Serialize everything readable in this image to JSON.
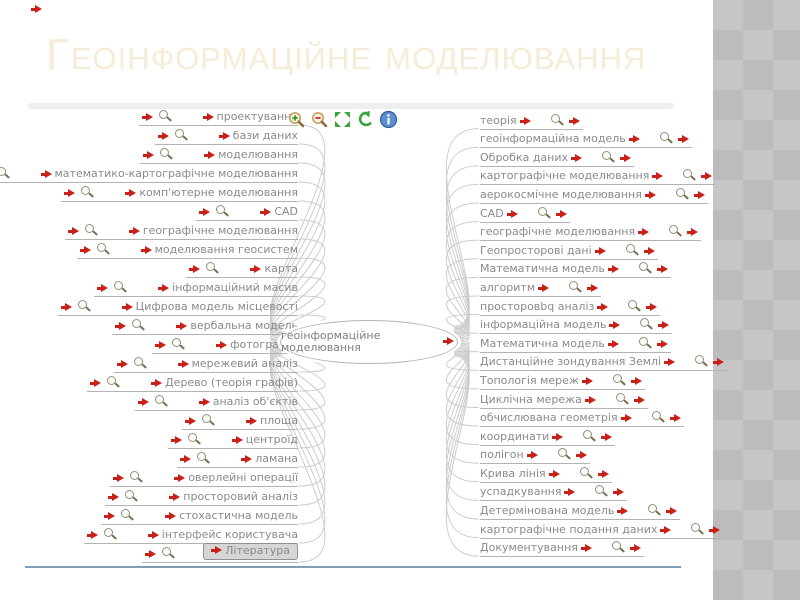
{
  "slide": {
    "title": "Геоінформаційне моделювання"
  },
  "colors": {
    "accent_red": "#c9211a",
    "title_cream": "#f6ecd7",
    "label_gray": "#8a8a8a",
    "row_line": "#b3b3b3",
    "curve_gray": "#cccccc",
    "frame_line": "#7f9db9",
    "box_bg": "#d6d6d6",
    "box_border": "#909090",
    "pattern_light": "#c6c6c6",
    "pattern_dark": "#bcbcbc",
    "magnifier_ring": "#90907e",
    "magnifier_handle": "#7d6e4e",
    "tool_green": "#3aa53a",
    "info_blue": "#5b8fd0"
  },
  "map": {
    "center_label": "геоінформаційне моделювання",
    "toolbar_icons": [
      "zoom-in-icon",
      "zoom-out-icon",
      "fit-screen-icon",
      "back-arrow-icon",
      "info-icon"
    ],
    "row_icons": [
      "red-arrow-icon",
      "magnifier-icon"
    ],
    "left_branches": [
      "проектування",
      "бази даних",
      "моделювання",
      "математико-картографічне моделювання",
      "комп'ютерне моделювання",
      "CAD",
      "географічне моделювання",
      "моделювання геосистем",
      "карта",
      "інформаційний масив",
      "Цифрова модель місцевості",
      "вербальна модель",
      "фотографія",
      "мережевий аналіз",
      "Дерево (теорія графів)",
      "аналіз об'єктів",
      "площа",
      "центроїд",
      "ламана",
      "оверлейні операції",
      "просторовий аналіз",
      "стохастична модель",
      "інтерфейс користувача"
    ],
    "left_boxed_branch": "Література",
    "right_branches": [
      "теорія",
      "геоінформаційна модель",
      "Обробка даних",
      "картографічне моделювання",
      "аерокосмічне моделювання",
      "CAD",
      "географічне моделювання",
      "Геопросторові дані",
      "Математична модель",
      "алгоритм",
      "просторовbq аналіз",
      "інформаційна модель",
      "Математична модель",
      "Дистанційне зондування Землі",
      "Топологія мереж",
      "Циклічна мережа",
      "обчислювана геометрія",
      "координати",
      "полігон",
      "Крива лінія",
      "успадкування",
      "Детермінована модель",
      "картографічне подання даних",
      "Документування"
    ]
  }
}
